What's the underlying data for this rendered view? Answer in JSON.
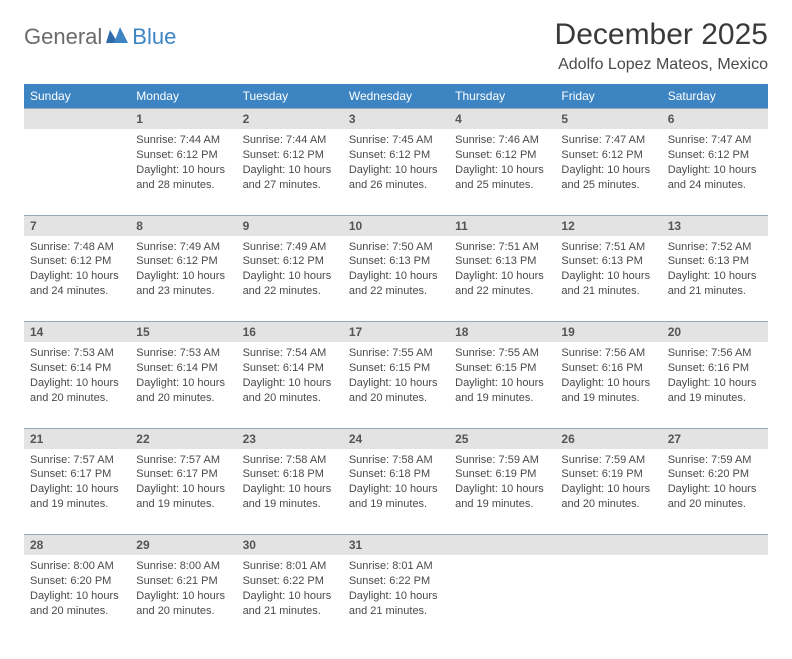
{
  "logo": {
    "general": "General",
    "blue": "Blue"
  },
  "title": "December 2025",
  "location": "Adolfo Lopez Mateos, Mexico",
  "colors": {
    "header_bg": "#3d84c3",
    "header_text": "#ffffff",
    "daynum_bg": "#e3e3e3",
    "body_text": "#4a4a4a",
    "logo_blue": "#3d84c3",
    "logo_gray": "#6b6b6b"
  },
  "typography": {
    "title_fontsize": 30,
    "location_fontsize": 16,
    "header_fontsize": 12,
    "cell_fontsize": 11
  },
  "day_headers": [
    "Sunday",
    "Monday",
    "Tuesday",
    "Wednesday",
    "Thursday",
    "Friday",
    "Saturday"
  ],
  "weeks": [
    {
      "nums": [
        "",
        "1",
        "2",
        "3",
        "4",
        "5",
        "6"
      ],
      "cells": [
        null,
        {
          "sunrise": "Sunrise: 7:44 AM",
          "sunset": "Sunset: 6:12 PM",
          "day1": "Daylight: 10 hours",
          "day2": "and 28 minutes."
        },
        {
          "sunrise": "Sunrise: 7:44 AM",
          "sunset": "Sunset: 6:12 PM",
          "day1": "Daylight: 10 hours",
          "day2": "and 27 minutes."
        },
        {
          "sunrise": "Sunrise: 7:45 AM",
          "sunset": "Sunset: 6:12 PM",
          "day1": "Daylight: 10 hours",
          "day2": "and 26 minutes."
        },
        {
          "sunrise": "Sunrise: 7:46 AM",
          "sunset": "Sunset: 6:12 PM",
          "day1": "Daylight: 10 hours",
          "day2": "and 25 minutes."
        },
        {
          "sunrise": "Sunrise: 7:47 AM",
          "sunset": "Sunset: 6:12 PM",
          "day1": "Daylight: 10 hours",
          "day2": "and 25 minutes."
        },
        {
          "sunrise": "Sunrise: 7:47 AM",
          "sunset": "Sunset: 6:12 PM",
          "day1": "Daylight: 10 hours",
          "day2": "and 24 minutes."
        }
      ]
    },
    {
      "nums": [
        "7",
        "8",
        "9",
        "10",
        "11",
        "12",
        "13"
      ],
      "cells": [
        {
          "sunrise": "Sunrise: 7:48 AM",
          "sunset": "Sunset: 6:12 PM",
          "day1": "Daylight: 10 hours",
          "day2": "and 24 minutes."
        },
        {
          "sunrise": "Sunrise: 7:49 AM",
          "sunset": "Sunset: 6:12 PM",
          "day1": "Daylight: 10 hours",
          "day2": "and 23 minutes."
        },
        {
          "sunrise": "Sunrise: 7:49 AM",
          "sunset": "Sunset: 6:12 PM",
          "day1": "Daylight: 10 hours",
          "day2": "and 22 minutes."
        },
        {
          "sunrise": "Sunrise: 7:50 AM",
          "sunset": "Sunset: 6:13 PM",
          "day1": "Daylight: 10 hours",
          "day2": "and 22 minutes."
        },
        {
          "sunrise": "Sunrise: 7:51 AM",
          "sunset": "Sunset: 6:13 PM",
          "day1": "Daylight: 10 hours",
          "day2": "and 22 minutes."
        },
        {
          "sunrise": "Sunrise: 7:51 AM",
          "sunset": "Sunset: 6:13 PM",
          "day1": "Daylight: 10 hours",
          "day2": "and 21 minutes."
        },
        {
          "sunrise": "Sunrise: 7:52 AM",
          "sunset": "Sunset: 6:13 PM",
          "day1": "Daylight: 10 hours",
          "day2": "and 21 minutes."
        }
      ]
    },
    {
      "nums": [
        "14",
        "15",
        "16",
        "17",
        "18",
        "19",
        "20"
      ],
      "cells": [
        {
          "sunrise": "Sunrise: 7:53 AM",
          "sunset": "Sunset: 6:14 PM",
          "day1": "Daylight: 10 hours",
          "day2": "and 20 minutes."
        },
        {
          "sunrise": "Sunrise: 7:53 AM",
          "sunset": "Sunset: 6:14 PM",
          "day1": "Daylight: 10 hours",
          "day2": "and 20 minutes."
        },
        {
          "sunrise": "Sunrise: 7:54 AM",
          "sunset": "Sunset: 6:14 PM",
          "day1": "Daylight: 10 hours",
          "day2": "and 20 minutes."
        },
        {
          "sunrise": "Sunrise: 7:55 AM",
          "sunset": "Sunset: 6:15 PM",
          "day1": "Daylight: 10 hours",
          "day2": "and 20 minutes."
        },
        {
          "sunrise": "Sunrise: 7:55 AM",
          "sunset": "Sunset: 6:15 PM",
          "day1": "Daylight: 10 hours",
          "day2": "and 19 minutes."
        },
        {
          "sunrise": "Sunrise: 7:56 AM",
          "sunset": "Sunset: 6:16 PM",
          "day1": "Daylight: 10 hours",
          "day2": "and 19 minutes."
        },
        {
          "sunrise": "Sunrise: 7:56 AM",
          "sunset": "Sunset: 6:16 PM",
          "day1": "Daylight: 10 hours",
          "day2": "and 19 minutes."
        }
      ]
    },
    {
      "nums": [
        "21",
        "22",
        "23",
        "24",
        "25",
        "26",
        "27"
      ],
      "cells": [
        {
          "sunrise": "Sunrise: 7:57 AM",
          "sunset": "Sunset: 6:17 PM",
          "day1": "Daylight: 10 hours",
          "day2": "and 19 minutes."
        },
        {
          "sunrise": "Sunrise: 7:57 AM",
          "sunset": "Sunset: 6:17 PM",
          "day1": "Daylight: 10 hours",
          "day2": "and 19 minutes."
        },
        {
          "sunrise": "Sunrise: 7:58 AM",
          "sunset": "Sunset: 6:18 PM",
          "day1": "Daylight: 10 hours",
          "day2": "and 19 minutes."
        },
        {
          "sunrise": "Sunrise: 7:58 AM",
          "sunset": "Sunset: 6:18 PM",
          "day1": "Daylight: 10 hours",
          "day2": "and 19 minutes."
        },
        {
          "sunrise": "Sunrise: 7:59 AM",
          "sunset": "Sunset: 6:19 PM",
          "day1": "Daylight: 10 hours",
          "day2": "and 19 minutes."
        },
        {
          "sunrise": "Sunrise: 7:59 AM",
          "sunset": "Sunset: 6:19 PM",
          "day1": "Daylight: 10 hours",
          "day2": "and 20 minutes."
        },
        {
          "sunrise": "Sunrise: 7:59 AM",
          "sunset": "Sunset: 6:20 PM",
          "day1": "Daylight: 10 hours",
          "day2": "and 20 minutes."
        }
      ]
    },
    {
      "nums": [
        "28",
        "29",
        "30",
        "31",
        "",
        "",
        ""
      ],
      "cells": [
        {
          "sunrise": "Sunrise: 8:00 AM",
          "sunset": "Sunset: 6:20 PM",
          "day1": "Daylight: 10 hours",
          "day2": "and 20 minutes."
        },
        {
          "sunrise": "Sunrise: 8:00 AM",
          "sunset": "Sunset: 6:21 PM",
          "day1": "Daylight: 10 hours",
          "day2": "and 20 minutes."
        },
        {
          "sunrise": "Sunrise: 8:01 AM",
          "sunset": "Sunset: 6:22 PM",
          "day1": "Daylight: 10 hours",
          "day2": "and 21 minutes."
        },
        {
          "sunrise": "Sunrise: 8:01 AM",
          "sunset": "Sunset: 6:22 PM",
          "day1": "Daylight: 10 hours",
          "day2": "and 21 minutes."
        },
        null,
        null,
        null
      ]
    }
  ]
}
